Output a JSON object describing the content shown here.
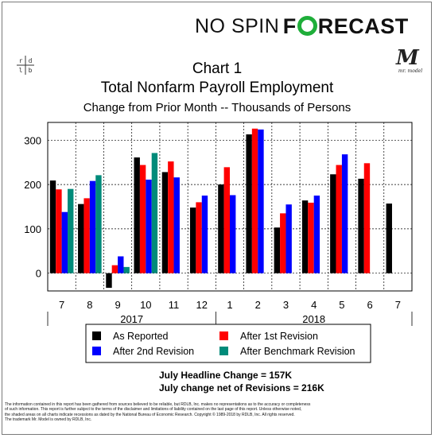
{
  "brand": {
    "part1": "NO SPIN",
    "part2a": "F",
    "part2b": "RECAST"
  },
  "logo_left": {
    "text": "r d l b"
  },
  "logo_right": {
    "mark": "M",
    "caption": "mr. model"
  },
  "chart_data": {
    "type": "bar",
    "title": "Chart 1",
    "subtitle": "Total Nonfarm Payroll Employment",
    "subtitle2": "Change from Prior Month -- Thousands of Persons",
    "categories": [
      "7",
      "8",
      "9",
      "10",
      "11",
      "12",
      "1",
      "2",
      "3",
      "4",
      "5",
      "6",
      "7"
    ],
    "year_labels": [
      {
        "label": "2017",
        "from_index": 0,
        "to_index": 5
      },
      {
        "label": "2018",
        "from_index": 6,
        "to_index": 12
      }
    ],
    "ylim": [
      -40,
      340
    ],
    "yticks": [
      0,
      100,
      200,
      300
    ],
    "grid": true,
    "series": [
      {
        "name": "As Reported",
        "color": "#000000",
        "values": [
          209,
          156,
          -33,
          261,
          228,
          148,
          200,
          313,
          103,
          164,
          223,
          213,
          157
        ]
      },
      {
        "name": "After 1st Revision",
        "color": "#ff0000",
        "values": [
          189,
          169,
          18,
          244,
          252,
          160,
          239,
          326,
          135,
          159,
          244,
          248,
          null
        ]
      },
      {
        "name": "After 2nd Revision",
        "color": "#0000ff",
        "values": [
          138,
          208,
          38,
          211,
          216,
          175,
          176,
          324,
          155,
          175,
          268,
          null,
          null
        ]
      },
      {
        "name": "After Benchmark Revision",
        "color": "#008b7a",
        "values": [
          190,
          221,
          14,
          271,
          null,
          null,
          null,
          null,
          null,
          null,
          null,
          null,
          null
        ]
      }
    ],
    "legend_placement": "bottom"
  },
  "headline": {
    "line1": "July Headline Change =  157K",
    "line2": "July change net of Revisions = 216K"
  },
  "footer": {
    "line1": "The information contained in this report has been gathered from sources believed to be reliable, but RDLB, Inc. makes no representations as to the accuracy or completeness",
    "line2": "of such information. This report is further subject to the terms of the disclaimer and limitations of liability contained on the last page of this report.  Unless otherwise noted,",
    "line3": "the shaded areas on all charts indicate recessions as dated by the National Bureau of Economic Research. Copyright © 1989-2018 by RDLB, Inc. All rights reserved.",
    "line4": "The trademark Mr. Model is owned by RDLB, Inc."
  }
}
